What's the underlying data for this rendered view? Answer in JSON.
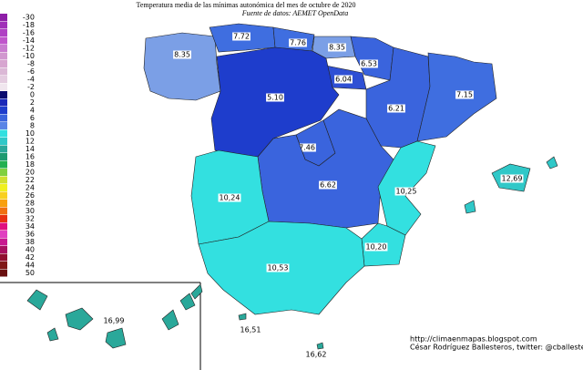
{
  "header": {
    "title": "Temperatura media de las mínimas autonómica del mes de octubre de 2020",
    "subtitle": "Fuente de datos: AEMET OpenData"
  },
  "legend": [
    {
      "value": -30,
      "color": "#8e1ea8"
    },
    {
      "value": -18,
      "color": "#a02fb8"
    },
    {
      "value": -16,
      "color": "#b040c4"
    },
    {
      "value": -14,
      "color": "#c055cc"
    },
    {
      "value": -12,
      "color": "#c97cd0"
    },
    {
      "value": -10,
      "color": "#d198cf"
    },
    {
      "value": -8,
      "color": "#d7a6d0"
    },
    {
      "value": -6,
      "color": "#dbb8d6"
    },
    {
      "value": -4,
      "color": "#e4cce0"
    },
    {
      "value": -2,
      "color": "#f0e6ee"
    },
    {
      "value": 0,
      "color": "#0a0a6e"
    },
    {
      "value": 2,
      "color": "#1a28b8"
    },
    {
      "value": 4,
      "color": "#1e3dcc"
    },
    {
      "value": 6,
      "color": "#3a64dd"
    },
    {
      "value": 8,
      "color": "#5a85e6"
    },
    {
      "value": 10,
      "color": "#33e0e0"
    },
    {
      "value": 12,
      "color": "#30c8c8"
    },
    {
      "value": 14,
      "color": "#2aa89a"
    },
    {
      "value": 16,
      "color": "#1e9a70"
    },
    {
      "value": 18,
      "color": "#22b050"
    },
    {
      "value": 20,
      "color": "#80d040"
    },
    {
      "value": 22,
      "color": "#d0e030"
    },
    {
      "value": 24,
      "color": "#f0f020"
    },
    {
      "value": 26,
      "color": "#f8d020"
    },
    {
      "value": 28,
      "color": "#f8a010"
    },
    {
      "value": 30,
      "color": "#f07010"
    },
    {
      "value": 32,
      "color": "#e83010"
    },
    {
      "value": 34,
      "color": "#e01080"
    },
    {
      "value": 36,
      "color": "#e040c0"
    },
    {
      "value": 38,
      "color": "#c81890"
    },
    {
      "value": 40,
      "color": "#a81060"
    },
    {
      "value": 42,
      "color": "#901030"
    },
    {
      "value": 44,
      "color": "#801818"
    },
    {
      "value": 50,
      "color": "#6a1010"
    }
  ],
  "regions": [
    {
      "label": "8.35",
      "color": "#7b9fe6"
    },
    {
      "label": "7.72",
      "color": "#3f6ee0"
    },
    {
      "label": "7.76",
      "color": "#3f6ee0"
    },
    {
      "label": "8.35",
      "color": "#7b9fe6"
    },
    {
      "label": "6.53",
      "color": "#3a64dd"
    },
    {
      "label": "6.04",
      "color": "#2f50d4"
    },
    {
      "label": "5.10",
      "color": "#1e3dcc"
    },
    {
      "label": "6.21",
      "color": "#3a64dd"
    },
    {
      "label": "7.15",
      "color": "#3f6ee0"
    },
    {
      "label": "7.46",
      "color": "#3a64dd"
    },
    {
      "label": "6.62",
      "color": "#3a64dd"
    },
    {
      "label": "10,24",
      "color": "#33e0e0"
    },
    {
      "label": "10,25",
      "color": "#33e0e0"
    },
    {
      "label": "10,20",
      "color": "#33e0e0"
    },
    {
      "label": "10,53",
      "color": "#33e0e0"
    },
    {
      "label": "12,69",
      "color": "#30c8c8"
    },
    {
      "label": "16,99",
      "color": "#2aa89a"
    },
    {
      "label": "16,51",
      "color": "#2aa89a"
    },
    {
      "label": "16,62",
      "color": "#2aa89a"
    }
  ],
  "footer": {
    "url": "http://climaenmapas.blogspot.com",
    "credit": "César Rodríguez Ballesteros, twitter: @cballesteros"
  }
}
